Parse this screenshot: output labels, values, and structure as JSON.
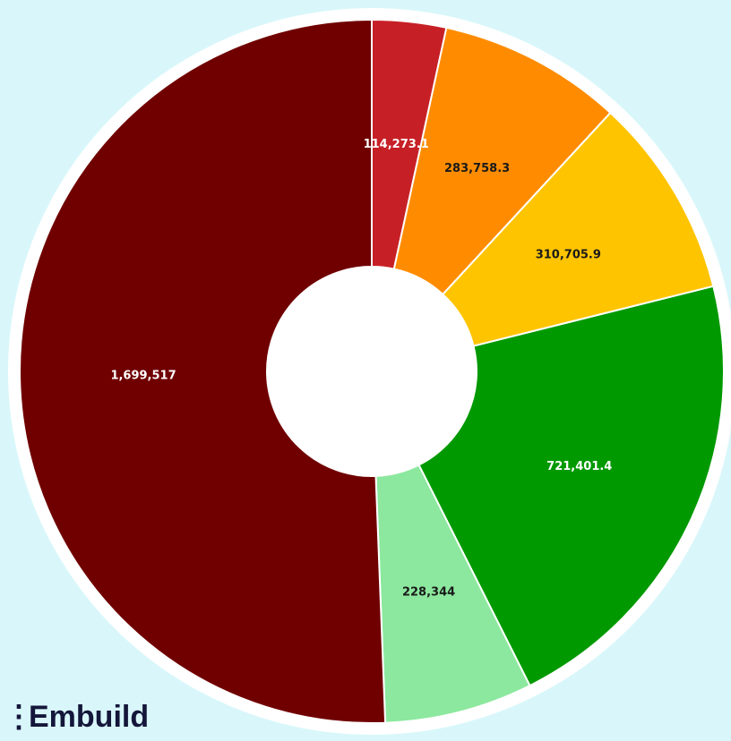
{
  "chart_data": {
    "type": "pie",
    "donut": true,
    "values": [
      114273.1,
      283758.3,
      310705.9,
      721401.4,
      228344,
      1699517
    ],
    "value_labels": [
      "114,273.1",
      "283,758.3",
      "310,705.9",
      "721,401.4",
      "228,344",
      "1,699,517"
    ],
    "colors": [
      "#c62026",
      "#ff8c00",
      "#ffc400",
      "#009900",
      "#8ce89e",
      "#700000"
    ]
  },
  "footer": {
    "label": "Embuild"
  }
}
